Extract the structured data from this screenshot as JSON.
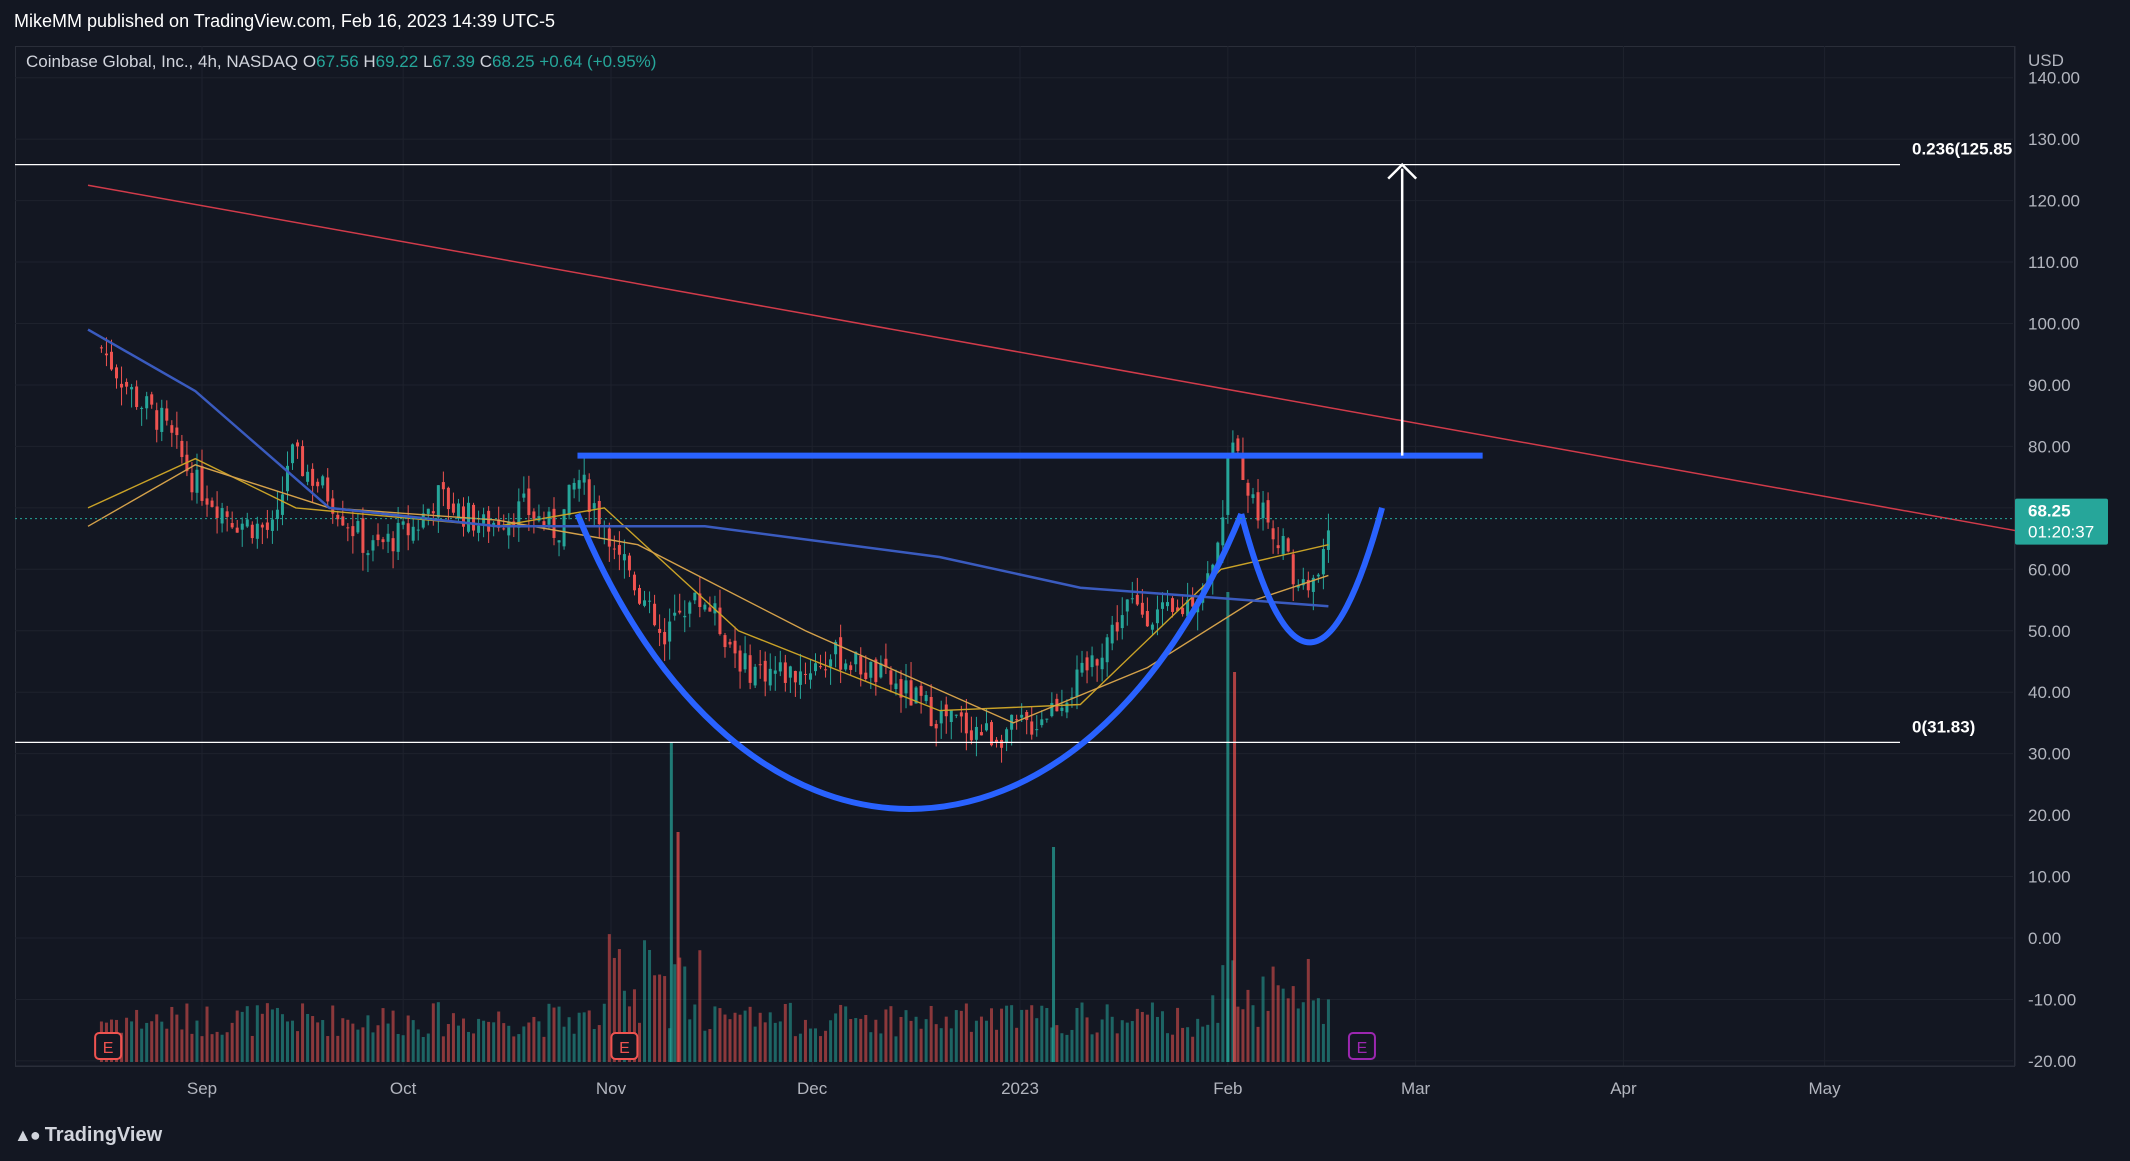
{
  "header": {
    "published": "MikeMM published on TradingView.com, Feb 16, 2023 14:39 UTC-5"
  },
  "legend": {
    "symbol": "Coinbase Global, Inc., 4h, NASDAQ",
    "o_label": "O",
    "o": "67.56",
    "h_label": "H",
    "h": "69.22",
    "l_label": "L",
    "l": "67.39",
    "c_label": "C",
    "c": "68.25",
    "change": "+0.64 (+0.95%)"
  },
  "currency": "USD",
  "price_tag": {
    "price": "68.25",
    "countdown": "01:20:37"
  },
  "fib_labels": {
    "upper": "0.236(125.85",
    "lower": "0(31.83)"
  },
  "footer": {
    "brand": "TradingView"
  },
  "colors": {
    "background": "#131722",
    "up": "#26a69a",
    "down": "#ef5350",
    "pattern": "#2962ff",
    "ema_short": "#c9a227",
    "ema_mid": "#d4a14a",
    "sma_long": "#3a5bbf",
    "trendline": "#d13b4a",
    "price_tag": "#26a69a"
  },
  "chart_data": {
    "type": "candlestick",
    "timeframe": "4h",
    "x_ticks": [
      "Sep",
      "Oct",
      "Nov",
      "Dec",
      "2023",
      "Feb",
      "Mar",
      "Apr",
      "May"
    ],
    "y_ticks": [
      "140.00",
      "130.00",
      "120.00",
      "110.00",
      "100.00",
      "90.00",
      "80.00",
      "70.00",
      "60.00",
      "50.00",
      "40.00",
      "30.00",
      "20.00",
      "10.00",
      "0.00",
      "-10.00",
      "-20.00"
    ],
    "ylim": [
      -20,
      140
    ],
    "close_path": [
      [
        "Aug 17",
        96
      ],
      [
        "Aug 22",
        88
      ],
      [
        "Aug 26",
        84
      ],
      [
        "Aug 31",
        74
      ],
      [
        "Sep 6",
        68
      ],
      [
        "Sep 12",
        66
      ],
      [
        "Sep 14",
        79
      ],
      [
        "Sep 20",
        72
      ],
      [
        "Sep 26",
        63
      ],
      [
        "Oct 3",
        67
      ],
      [
        "Oct 6",
        72
      ],
      [
        "Oct 13",
        67
      ],
      [
        "Oct 19",
        70
      ],
      [
        "Oct 24",
        66
      ],
      [
        "Oct 27",
        75
      ],
      [
        "Nov 3",
        62
      ],
      [
        "Nov 9",
        47
      ],
      [
        "Nov 11",
        54
      ],
      [
        "Nov 15",
        55
      ],
      [
        "Nov 21",
        44
      ],
      [
        "Nov 28",
        43
      ],
      [
        "Dec 5",
        46
      ],
      [
        "Dec 12",
        42
      ],
      [
        "Dec 20",
        36
      ],
      [
        "Dec 28",
        33
      ],
      [
        "Jan 3",
        35
      ],
      [
        "Jan 10",
        42
      ],
      [
        "Jan 17",
        54
      ],
      [
        "Jan 24",
        52
      ],
      [
        "Jan 30",
        60
      ],
      [
        "Feb 1",
        76
      ],
      [
        "Feb 2",
        85
      ],
      [
        "Feb 4",
        72
      ],
      [
        "Feb 8",
        67
      ],
      [
        "Feb 11",
        58
      ],
      [
        "Feb 14",
        57
      ],
      [
        "Feb 16",
        68.25
      ]
    ],
    "moving_averages": [
      {
        "name": "",
        "color": "#c9a227",
        "points": [
          [
            "Aug 15",
            70
          ],
          [
            "Aug 31",
            78
          ],
          [
            "Sep 15",
            70
          ],
          [
            "Oct 15",
            67
          ],
          [
            "Oct 31",
            70
          ],
          [
            "Nov 20",
            50
          ],
          [
            "Dec 20",
            37
          ],
          [
            "Jan 10",
            38
          ],
          [
            "Jan 31",
            60
          ],
          [
            "Feb 16",
            64
          ]
        ]
      },
      {
        "name": "",
        "color": "#d4a14a",
        "points": [
          [
            "Aug 15",
            67
          ],
          [
            "Aug 31",
            77
          ],
          [
            "Sep 20",
            70
          ],
          [
            "Oct 15",
            68
          ],
          [
            "Nov 5",
            64
          ],
          [
            "Nov 30",
            50
          ],
          [
            "Dec 31",
            35
          ],
          [
            "Jan 20",
            44
          ],
          [
            "Feb 5",
            55
          ],
          [
            "Feb 16",
            59
          ]
        ]
      },
      {
        "name": "",
        "color": "#3a5bbf",
        "points": [
          [
            "Aug 15",
            99
          ],
          [
            "Aug 31",
            89
          ],
          [
            "Sep 20",
            70
          ],
          [
            "Oct 15",
            67
          ],
          [
            "Nov 15",
            67
          ],
          [
            "Dec 20",
            62
          ],
          [
            "Jan 10",
            57
          ],
          [
            "Feb 16",
            54
          ]
        ]
      }
    ],
    "annotations": {
      "fib_upper_level": 125.85,
      "fib_lower_level": 31.83,
      "resistance_level": 78.5,
      "target_arrow_from": 78.5,
      "target_arrow_to": 125.85,
      "cup_low": 21,
      "handle_low": 52,
      "trendline": [
        [
          "Aug 15",
          122.5
        ],
        [
          "May 31",
          66
        ]
      ]
    },
    "volume_note": "volume bars shown in lower pane; largest spike near Feb 1-2",
    "earnings_markers": [
      "E",
      "E",
      "E"
    ]
  }
}
